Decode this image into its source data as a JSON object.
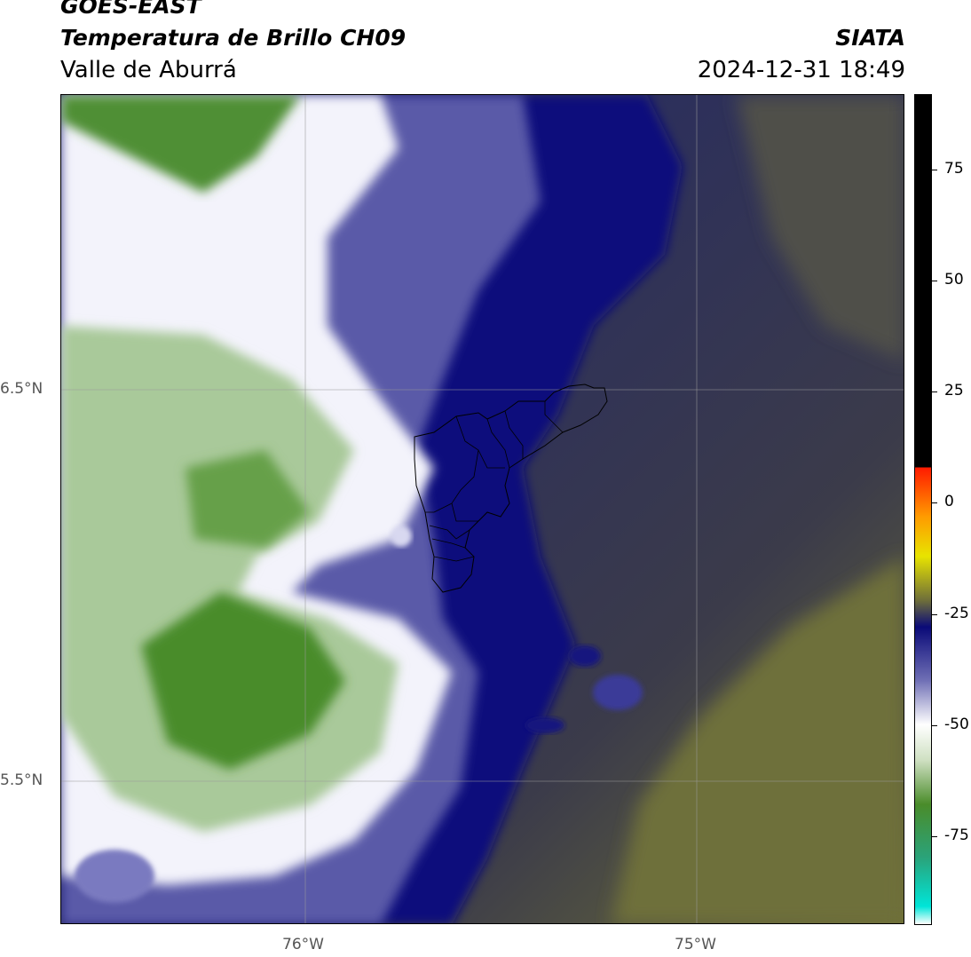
{
  "header": {
    "satellite": "GOES-EAST",
    "product": "Temperatura de Brillo CH09",
    "region": "Valle de Aburrá",
    "org": "SIATA",
    "datetime": "2024-12-31 18:49"
  },
  "axes": {
    "lat_labels": [
      "6.5°N",
      "5.5°N"
    ],
    "lon_labels": [
      "76°W",
      "75°W"
    ]
  },
  "colorbar": {
    "ticks": [
      "75",
      "50",
      "25",
      "0",
      "-25",
      "-50",
      "-75"
    ],
    "range": [
      -95,
      92
    ],
    "stops": [
      {
        "v": -95,
        "c": "#ffffff"
      },
      {
        "v": -91,
        "c": "#00e5d8"
      },
      {
        "v": -80,
        "c": "#2aa37a"
      },
      {
        "v": -68,
        "c": "#4a8c2a"
      },
      {
        "v": -58,
        "c": "#cfe0c2"
      },
      {
        "v": -50,
        "c": "#ffffff"
      },
      {
        "v": -40,
        "c": "#6f6fb5"
      },
      {
        "v": -28,
        "c": "#0a0a78"
      },
      {
        "v": -22,
        "c": "#6e6e3a"
      },
      {
        "v": -12,
        "c": "#e8e400"
      },
      {
        "v": -3,
        "c": "#ff9a00"
      },
      {
        "v": 8,
        "c": "#ff1a00"
      },
      {
        "v": 8.01,
        "c": "#000000"
      },
      {
        "v": 92,
        "c": "#000000"
      }
    ]
  },
  "colors": {
    "cold_cloud_green": "#4a8c2a",
    "white_band": "#ffffff",
    "navy": "#0b0b7a",
    "dark_slate": "#2f3358",
    "olive": "#6f7036"
  }
}
